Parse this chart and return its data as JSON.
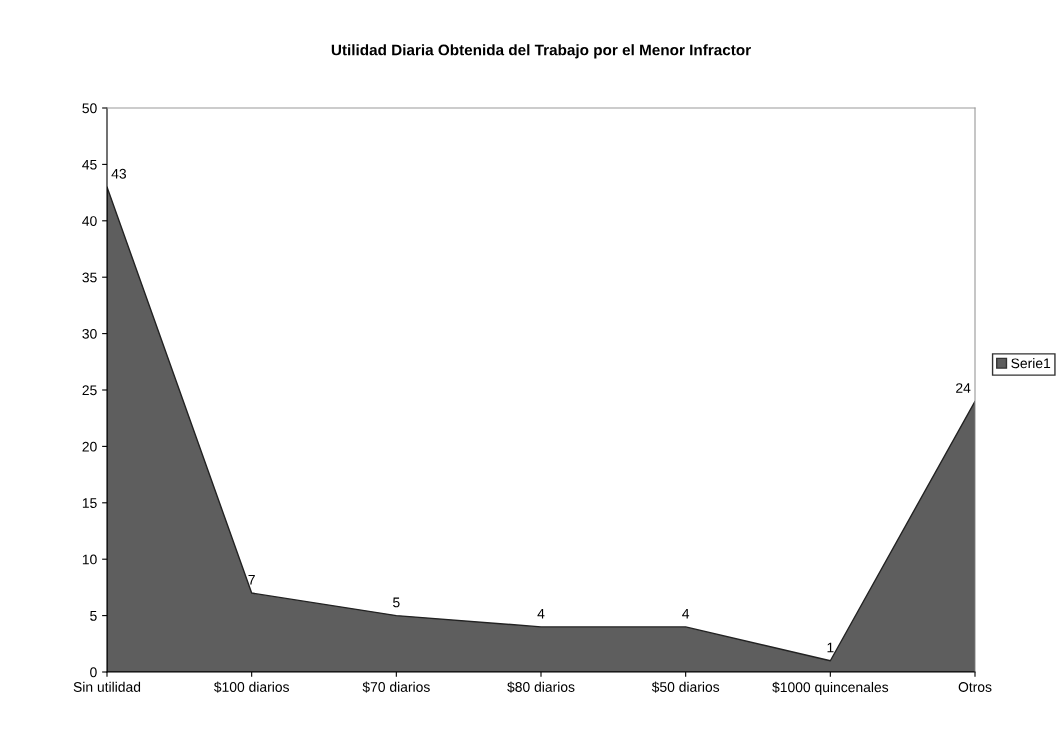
{
  "chart_data": {
    "type": "area",
    "title": "Utilidad Diaria Obtenida del Trabajo por el Menor Infractor",
    "categories": [
      "Sin utilidad",
      "$100 diarios",
      "$70 diarios",
      "$80 diarios",
      "$50 diarios",
      "$1000 quincenales",
      "Otros"
    ],
    "series": [
      {
        "name": "Serie1",
        "color": "#5e5e5e",
        "values": [
          43,
          7,
          5,
          4,
          4,
          1,
          24
        ]
      }
    ],
    "ylim": [
      0,
      50
    ],
    "yticks": [
      0,
      5,
      10,
      15,
      20,
      25,
      30,
      35,
      40,
      45,
      50
    ],
    "data_labels": true,
    "legend": "right",
    "grid": false
  }
}
